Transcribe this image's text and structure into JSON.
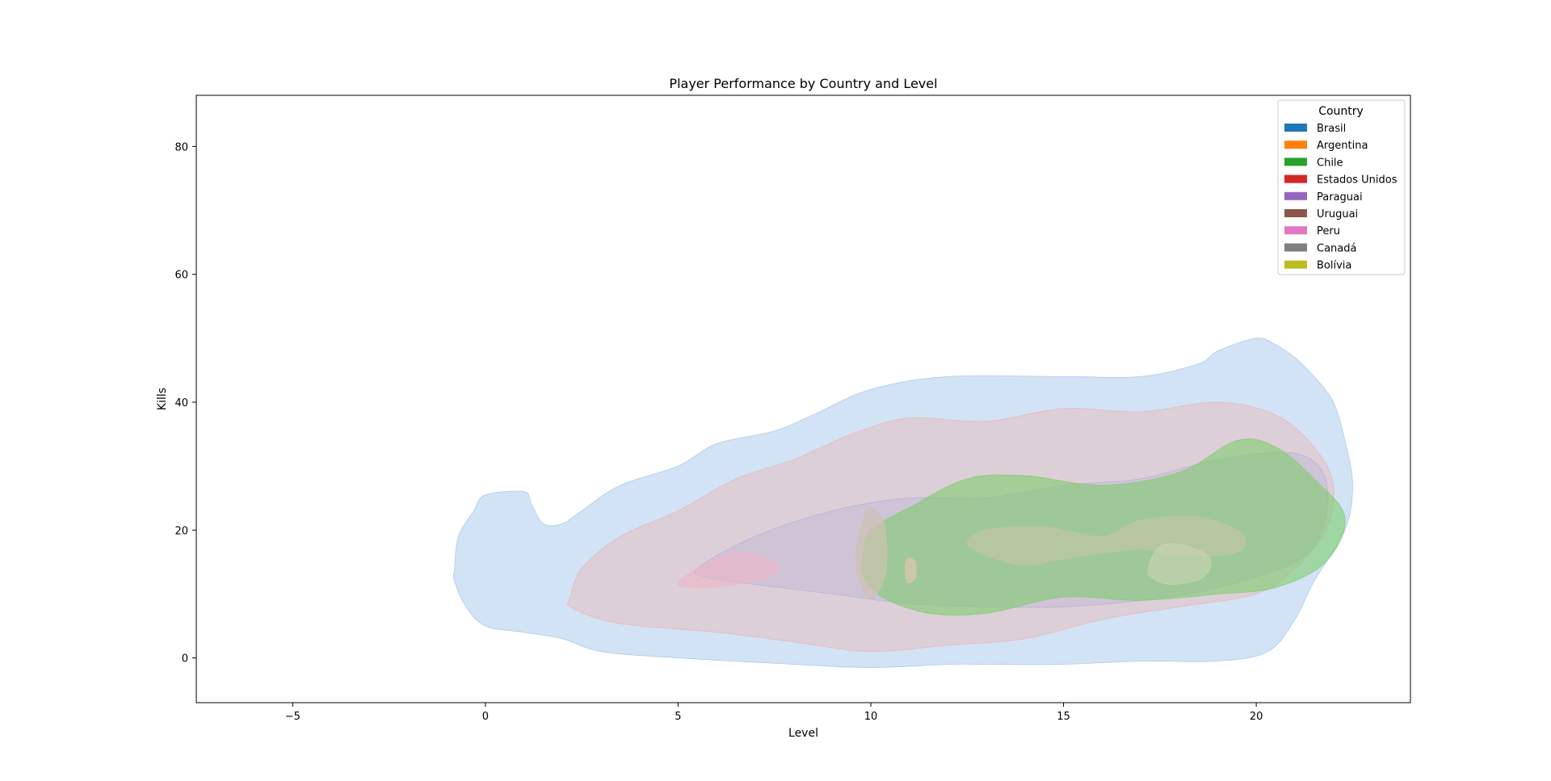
{
  "chart_data": {
    "type": "kde-density",
    "title": "Player Performance by Country and Level",
    "xlabel": "Level",
    "ylabel": "Kills",
    "xlim": [
      -7.5,
      24
    ],
    "ylim": [
      -7,
      88
    ],
    "xticks": [
      -5,
      0,
      5,
      10,
      15,
      20
    ],
    "yticks": [
      0,
      20,
      40,
      60,
      80
    ],
    "xtick_labels": [
      "−5",
      "0",
      "5",
      "10",
      "15",
      "20"
    ],
    "ytick_labels": [
      "0",
      "20",
      "40",
      "60",
      "80"
    ],
    "grid": false,
    "legend": {
      "title": "Country",
      "placement": "top-right",
      "entries": [
        {
          "name": "Brasil",
          "color": "#1f77b4"
        },
        {
          "name": "Argentina",
          "color": "#ff7f0e"
        },
        {
          "name": "Chile",
          "color": "#2ca02c"
        },
        {
          "name": "Estados Unidos",
          "color": "#d62728"
        },
        {
          "name": "Paraguai",
          "color": "#9467bd"
        },
        {
          "name": "Uruguai",
          "color": "#8c564b"
        },
        {
          "name": "Peru",
          "color": "#e377c2"
        },
        {
          "name": "Canadá",
          "color": "#7f7f7f"
        },
        {
          "name": "Bolívia",
          "color": "#bcbd22"
        }
      ]
    },
    "series": [
      {
        "name": "Brasil",
        "fill": "#a6c8ee",
        "opacity": 0.5,
        "region": [
          [
            -0.8,
            14
          ],
          [
            -0.7,
            19
          ],
          [
            -0.3,
            23
          ],
          [
            0,
            25.5
          ],
          [
            1,
            26
          ],
          [
            1.2,
            24
          ],
          [
            1.5,
            21
          ],
          [
            2,
            21
          ],
          [
            2.5,
            23
          ],
          [
            3.5,
            27
          ],
          [
            5,
            30
          ],
          [
            6,
            33.5
          ],
          [
            7.5,
            35.5
          ],
          [
            8.5,
            38
          ],
          [
            10,
            42
          ],
          [
            12,
            44
          ],
          [
            15,
            44
          ],
          [
            17,
            44
          ],
          [
            18.5,
            46
          ],
          [
            19,
            48
          ],
          [
            20,
            50
          ],
          [
            20.5,
            49
          ],
          [
            21,
            47
          ],
          [
            21.5,
            44
          ],
          [
            22,
            40
          ],
          [
            22.3,
            34
          ],
          [
            22.5,
            27
          ],
          [
            22.3,
            20
          ],
          [
            21.5,
            12
          ],
          [
            21,
            6
          ],
          [
            20.3,
            1
          ],
          [
            19,
            -0.5
          ],
          [
            17,
            -0.5
          ],
          [
            15,
            -1
          ],
          [
            13,
            -1
          ],
          [
            12,
            -1
          ],
          [
            10,
            -1.5
          ],
          [
            8,
            -1
          ],
          [
            5,
            0
          ],
          [
            3,
            1
          ],
          [
            2,
            3
          ],
          [
            1,
            4
          ],
          [
            0,
            5
          ],
          [
            -0.5,
            8
          ],
          [
            -0.8,
            12
          ]
        ]
      },
      {
        "name": "Estados Unidos",
        "fill": "#e8b5b3",
        "opacity": 0.45,
        "region": [
          [
            2.2,
            9.5
          ],
          [
            2.5,
            14
          ],
          [
            3.5,
            19
          ],
          [
            5,
            23
          ],
          [
            6.5,
            28
          ],
          [
            8,
            31
          ],
          [
            9.5,
            35
          ],
          [
            11,
            37.5
          ],
          [
            13,
            37
          ],
          [
            15,
            39
          ],
          [
            17,
            38.5
          ],
          [
            19,
            40
          ],
          [
            20.5,
            38
          ],
          [
            21.5,
            33
          ],
          [
            22,
            27
          ],
          [
            21.8,
            20
          ],
          [
            21,
            14
          ],
          [
            20,
            10
          ],
          [
            18,
            8
          ],
          [
            16,
            6
          ],
          [
            14,
            3
          ],
          [
            12,
            2
          ],
          [
            10,
            1
          ],
          [
            8,
            2.5
          ],
          [
            6,
            4
          ],
          [
            4,
            5
          ],
          [
            3,
            6
          ],
          [
            2.2,
            8
          ]
        ]
      },
      {
        "name": "Paraguai",
        "fill": "#b8aed6",
        "opacity": 0.35,
        "region": [
          [
            5.5,
            14
          ],
          [
            7,
            19
          ],
          [
            9,
            23
          ],
          [
            11,
            25
          ],
          [
            13,
            25
          ],
          [
            15,
            27
          ],
          [
            17,
            28
          ],
          [
            19,
            31
          ],
          [
            21,
            32
          ],
          [
            21.8,
            28
          ],
          [
            21.7,
            20
          ],
          [
            21,
            15
          ],
          [
            19,
            11
          ],
          [
            17,
            9
          ],
          [
            15,
            8
          ],
          [
            13,
            8
          ],
          [
            11,
            8.5
          ],
          [
            9,
            10
          ],
          [
            7,
            11.5
          ],
          [
            5.8,
            12.5
          ]
        ]
      },
      {
        "name": "Peru",
        "fill": "#f3b2c4",
        "opacity": 0.55,
        "region": [
          [
            5,
            11.5
          ],
          [
            5.5,
            14
          ],
          [
            6.5,
            16.5
          ],
          [
            7.5,
            15
          ],
          [
            7.5,
            13
          ],
          [
            6.5,
            11.5
          ],
          [
            5.6,
            11
          ]
        ]
      },
      {
        "name": "Chile",
        "fill": "#7fcc6e",
        "opacity": 0.6,
        "region": [
          [
            9.8,
            16
          ],
          [
            10,
            20
          ],
          [
            11,
            23.5
          ],
          [
            12.5,
            28
          ],
          [
            14,
            28.5
          ],
          [
            16,
            27
          ],
          [
            18,
            29
          ],
          [
            19.5,
            34
          ],
          [
            20.5,
            33
          ],
          [
            21.5,
            28
          ],
          [
            22.3,
            22
          ],
          [
            21.8,
            15
          ],
          [
            20.5,
            11
          ],
          [
            19,
            10
          ],
          [
            17,
            9
          ],
          [
            15,
            9.5
          ],
          [
            13,
            7
          ],
          [
            11.5,
            7
          ],
          [
            10.3,
            9.5
          ],
          [
            9.8,
            13
          ]
        ]
      },
      {
        "name": "Canadá",
        "fill": "#c3c4a6",
        "opacity": 0.65,
        "region": [
          [
            12.5,
            18
          ],
          [
            13,
            16
          ],
          [
            14,
            14.5
          ],
          [
            15,
            15.5
          ],
          [
            17,
            17
          ],
          [
            18,
            16
          ],
          [
            19.5,
            16.5
          ],
          [
            19.6,
            19.5
          ],
          [
            18.5,
            22
          ],
          [
            17,
            21.5
          ],
          [
            16,
            19
          ],
          [
            14.5,
            20.5
          ],
          [
            13,
            20
          ]
        ]
      },
      {
        "name": "Bolívia",
        "fill": "#c9d4b4",
        "opacity": 0.6,
        "region": [
          [
            17.2,
            14
          ],
          [
            17.5,
            17.5
          ],
          [
            18.2,
            17.5
          ],
          [
            18.8,
            15.5
          ],
          [
            18.6,
            12.5
          ],
          [
            17.8,
            11.5
          ],
          [
            17.3,
            12.5
          ]
        ]
      },
      {
        "name": "Uruguai",
        "fill": "#cfc2b3",
        "opacity": 0.7,
        "region": [
          [
            9.6,
            16
          ],
          [
            9.8,
            22
          ],
          [
            10,
            23.5
          ],
          [
            10.35,
            21
          ],
          [
            10.4,
            14
          ],
          [
            10.1,
            9.5
          ],
          [
            9.8,
            10.5
          ]
        ]
      },
      {
        "name": "Argentina",
        "fill": "#d9c6b0",
        "opacity": 0.8,
        "region": [
          [
            10.9,
            14
          ],
          [
            10.95,
            15.5
          ],
          [
            11.15,
            15
          ],
          [
            11.15,
            12.5
          ],
          [
            10.95,
            11.8
          ]
        ]
      }
    ]
  }
}
